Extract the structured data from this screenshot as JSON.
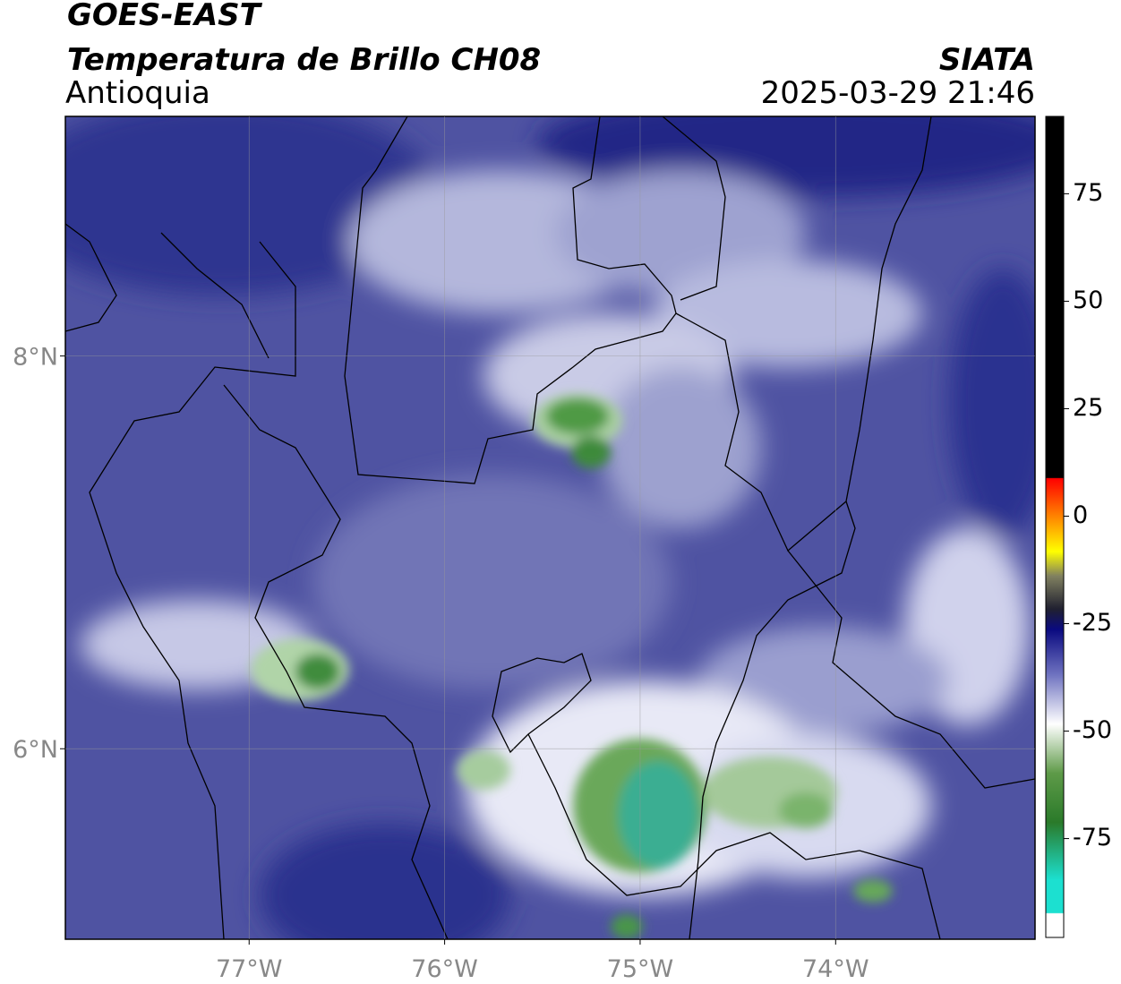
{
  "header": {
    "title": "GOES-EAST",
    "subtitle": "Temperatura de Brillo CH08",
    "region": "Antioquia",
    "source": "SIATA",
    "datetime": "2025-03-29 21:46"
  },
  "map": {
    "xlim": [
      -77.94,
      -72.98
    ],
    "ylim": [
      5.03,
      9.22
    ],
    "xticks": [
      {
        "value": -77,
        "label": "77°W"
      },
      {
        "value": -76,
        "label": "76°W"
      },
      {
        "value": -75,
        "label": "75°W"
      },
      {
        "value": -74,
        "label": "74°W"
      }
    ],
    "yticks": [
      {
        "value": 6,
        "label": "6°N"
      },
      {
        "value": 8,
        "label": "8°N"
      }
    ],
    "grid": true
  },
  "colorbar": {
    "range": [
      -98,
      93
    ],
    "ticks": [
      75,
      50,
      25,
      0,
      -25,
      -50,
      -75
    ]
  }
}
